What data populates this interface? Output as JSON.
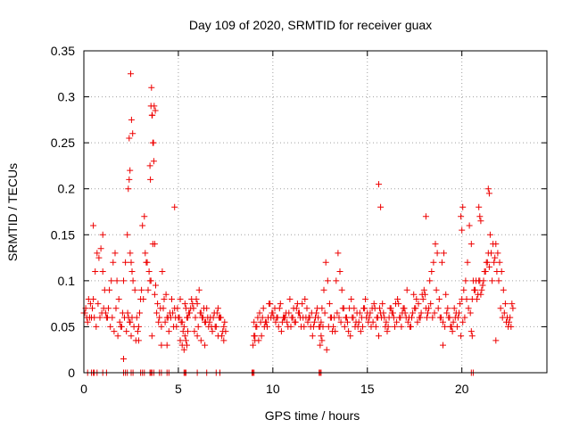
{
  "chart_data": {
    "type": "scatter",
    "title": "Day 109 of 2020, SRMTID for receiver guax",
    "xlabel": "GPS time / hours",
    "ylabel": "SRMTID / TECUs",
    "xlim": [
      0,
      24.5
    ],
    "ylim": [
      0,
      0.35
    ],
    "xticks": [
      0,
      5,
      10,
      15,
      20
    ],
    "yticks": [
      0,
      0.05,
      0.1,
      0.15,
      0.2,
      0.25,
      0.3,
      0.35
    ],
    "xtick_labels": [
      "0",
      "5",
      "10",
      "15",
      "20"
    ],
    "ytick_labels": [
      "0",
      "0.05",
      "0.1",
      "0.15",
      "0.2",
      "0.25",
      "0.3",
      "0.35"
    ],
    "grid": true,
    "marker": "plus",
    "series": [
      {
        "name": "SRMTID",
        "color": "#ee0000",
        "x": [
          0.0,
          0.1,
          0.2,
          0.3,
          0.4,
          0.5,
          0.6,
          0.7,
          0.8,
          0.9,
          1.0,
          1.1,
          1.2,
          1.3,
          1.4,
          1.5,
          1.6,
          1.7,
          1.8,
          1.9,
          2.0,
          2.1,
          2.2,
          2.3,
          2.35,
          2.4,
          2.45,
          2.5,
          2.55,
          2.6,
          2.7,
          2.8,
          2.9,
          3.0,
          3.1,
          3.2,
          3.3,
          3.4,
          3.5,
          3.55,
          3.6,
          3.65,
          3.7,
          3.75,
          3.8,
          3.9,
          4.0,
          4.1,
          4.2,
          4.3,
          4.4,
          4.5,
          4.6,
          4.7,
          4.8,
          4.9,
          5.0,
          5.1,
          5.2,
          5.3,
          5.4,
          5.5,
          5.6,
          5.7,
          5.8,
          5.9,
          6.0,
          6.1,
          6.2,
          6.3,
          6.4,
          6.5,
          6.6,
          6.7,
          6.8,
          6.9,
          7.0,
          7.1,
          7.2,
          7.3,
          7.4,
          7.5,
          9.0,
          9.1,
          9.2,
          9.3,
          9.4,
          9.5,
          9.6,
          9.7,
          9.8,
          9.9,
          10.0,
          10.1,
          10.2,
          10.3,
          10.4,
          10.5,
          10.6,
          10.7,
          10.8,
          10.9,
          11.0,
          11.1,
          11.2,
          11.3,
          11.4,
          11.5,
          11.6,
          11.7,
          11.8,
          11.9,
          12.0,
          12.1,
          12.2,
          12.3,
          12.4,
          12.5,
          12.6,
          12.7,
          12.8,
          12.9,
          13.0,
          13.1,
          13.2,
          13.3,
          13.4,
          13.5,
          13.6,
          13.7,
          13.8,
          13.9,
          14.0,
          14.1,
          14.2,
          14.3,
          14.4,
          14.5,
          14.6,
          14.7,
          14.8,
          14.9,
          15.0,
          15.1,
          15.2,
          15.3,
          15.4,
          15.5,
          15.6,
          15.7,
          15.8,
          15.9,
          16.0,
          16.1,
          16.2,
          16.3,
          16.4,
          16.5,
          16.6,
          16.7,
          16.8,
          16.9,
          17.0,
          17.1,
          17.2,
          17.3,
          17.4,
          17.5,
          17.6,
          17.7,
          17.8,
          17.9,
          18.0,
          18.1,
          18.2,
          18.3,
          18.4,
          18.5,
          18.6,
          18.7,
          18.8,
          18.9,
          19.0,
          19.1,
          19.2,
          19.3,
          19.4,
          19.5,
          19.6,
          19.7,
          19.8,
          19.9,
          20.0,
          20.1,
          20.2,
          20.3,
          20.4,
          20.5,
          20.6,
          20.7,
          20.8,
          20.9,
          21.0,
          21.1,
          21.2,
          21.3,
          21.4,
          21.5,
          21.6,
          21.7,
          21.8,
          21.9,
          22.0,
          22.1,
          22.2,
          22.3,
          22.4,
          22.5,
          22.6,
          22.7,
          0.05,
          0.15,
          0.25,
          0.35,
          0.45,
          0.55,
          0.65,
          0.75,
          0.85,
          0.95,
          1.05,
          1.15,
          1.25,
          1.35,
          1.45,
          1.55,
          1.65,
          1.75,
          1.85,
          1.95,
          2.05,
          2.15,
          2.25,
          2.45,
          2.5,
          2.55,
          2.65,
          2.75,
          2.85,
          2.95,
          3.05,
          3.15,
          3.25,
          3.35,
          3.45,
          3.55,
          3.65,
          3.75,
          3.85,
          3.95,
          4.05,
          4.15,
          4.25,
          4.35,
          4.45,
          4.55,
          4.65,
          4.75,
          4.85,
          4.95,
          5.05,
          5.15,
          5.25,
          5.35,
          5.45,
          5.55,
          5.65,
          5.75,
          5.85,
          5.95,
          6.05,
          6.15,
          6.25,
          6.35,
          6.45,
          6.55,
          6.65,
          6.75,
          6.85,
          6.95,
          7.05,
          7.15,
          7.25,
          7.35,
          7.45,
          9.05,
          9.15,
          9.25,
          9.35,
          9.45,
          9.55,
          9.65,
          9.75,
          9.85,
          9.95,
          10.05,
          10.15,
          10.25,
          10.35,
          10.45,
          10.55,
          10.65,
          10.75,
          10.85,
          10.95,
          11.05,
          11.15,
          11.25,
          11.35,
          11.45,
          11.55,
          11.65,
          11.75,
          11.85,
          11.95,
          12.05,
          12.15,
          12.25,
          12.35,
          12.45,
          12.55,
          12.65,
          12.75,
          12.85,
          12.95,
          13.05,
          13.15,
          13.25,
          13.35,
          13.45,
          13.55,
          13.65,
          13.75,
          13.85,
          13.95,
          14.05,
          14.15,
          14.25,
          14.35,
          14.45,
          14.55,
          14.65,
          14.75,
          14.85,
          14.95,
          15.05,
          15.15,
          15.25,
          15.35,
          15.45,
          15.55,
          15.65,
          15.75,
          15.85,
          15.95,
          16.05,
          16.15,
          16.25,
          16.35,
          16.45,
          16.55,
          16.65,
          16.75,
          16.85,
          16.95,
          17.05,
          17.15,
          17.25,
          17.35,
          17.45,
          17.55,
          17.65,
          17.75,
          17.85,
          17.95,
          18.05,
          18.15,
          18.25,
          18.35,
          18.45,
          18.55,
          18.65,
          18.75,
          18.85,
          18.95,
          19.05,
          19.15,
          19.25,
          19.35,
          19.45,
          19.55,
          19.65,
          19.75,
          19.85,
          19.95,
          20.05,
          20.15,
          20.25,
          20.35,
          20.45,
          20.55,
          20.65,
          20.75,
          20.85,
          20.95,
          21.05,
          21.15,
          21.25,
          21.35,
          21.45,
          21.55,
          21.65,
          21.75,
          21.85,
          21.95,
          22.05,
          22.15,
          22.25,
          22.35,
          22.45,
          22.55,
          22.65,
          2.32,
          2.36,
          2.42,
          2.48,
          3.58,
          3.62,
          3.68,
          3.72,
          3.78,
          2.52,
          2.58,
          2.4,
          2.44,
          3.52,
          3.5,
          15.6,
          15.7,
          18.1,
          19.95,
          20.0,
          20.05,
          20.9,
          20.95,
          21.0,
          21.4,
          21.45,
          4.8,
          0.5,
          1.0,
          2.1,
          2.9,
          3.6,
          4.1,
          4.4,
          5.1,
          5.2,
          5.3,
          5.35,
          5.4,
          5.45,
          5.5,
          6.0,
          6.2,
          6.4,
          7.1,
          7.4,
          8.95,
          9.0,
          9.05,
          12.5,
          12.55,
          12.6,
          19.0,
          20.5,
          20.55,
          21.8
        ],
        "y": [
          0.065,
          0.07,
          0.055,
          0.06,
          0.06,
          0.08,
          0.11,
          0.13,
          0.125,
          0.135,
          0.11,
          0.09,
          0.06,
          0.07,
          0.05,
          0.06,
          0.045,
          0.07,
          0.04,
          0.055,
          0.05,
          0.1,
          0.12,
          0.15,
          0.2,
          0.21,
          0.13,
          0.12,
          0.11,
          0.1,
          0.09,
          0.06,
          0.05,
          0.08,
          0.16,
          0.17,
          0.12,
          0.09,
          0.1,
          0.29,
          0.28,
          0.25,
          0.23,
          0.14,
          0.095,
          0.075,
          0.06,
          0.05,
          0.07,
          0.055,
          0.06,
          0.045,
          0.06,
          0.065,
          0.07,
          0.05,
          0.06,
          0.08,
          0.055,
          0.05,
          0.07,
          0.06,
          0.065,
          0.08,
          0.07,
          0.06,
          0.075,
          0.09,
          0.065,
          0.06,
          0.055,
          0.07,
          0.05,
          0.06,
          0.045,
          0.065,
          0.05,
          0.07,
          0.06,
          0.04,
          0.05,
          0.045,
          0.055,
          0.05,
          0.06,
          0.065,
          0.04,
          0.07,
          0.055,
          0.05,
          0.075,
          0.06,
          0.065,
          0.07,
          0.06,
          0.05,
          0.075,
          0.055,
          0.06,
          0.065,
          0.05,
          0.08,
          0.06,
          0.07,
          0.055,
          0.075,
          0.065,
          0.05,
          0.06,
          0.08,
          0.07,
          0.06,
          0.05,
          0.04,
          0.055,
          0.065,
          0.06,
          0.05,
          0.07,
          0.09,
          0.12,
          0.1,
          0.075,
          0.06,
          0.05,
          0.045,
          0.065,
          0.06,
          0.055,
          0.07,
          0.05,
          0.06,
          0.045,
          0.04,
          0.06,
          0.07,
          0.055,
          0.05,
          0.065,
          0.06,
          0.07,
          0.08,
          0.065,
          0.06,
          0.05,
          0.055,
          0.07,
          0.06,
          0.04,
          0.065,
          0.075,
          0.06,
          0.055,
          0.05,
          0.07,
          0.065,
          0.06,
          0.075,
          0.08,
          0.06,
          0.05,
          0.07,
          0.065,
          0.09,
          0.06,
          0.05,
          0.065,
          0.07,
          0.08,
          0.075,
          0.06,
          0.085,
          0.09,
          0.07,
          0.065,
          0.1,
          0.11,
          0.12,
          0.14,
          0.13,
          0.08,
          0.06,
          0.055,
          0.05,
          0.065,
          0.06,
          0.05,
          0.045,
          0.07,
          0.065,
          0.06,
          0.075,
          0.08,
          0.09,
          0.1,
          0.12,
          0.16,
          0.14,
          0.1,
          0.09,
          0.08,
          0.1,
          0.085,
          0.095,
          0.11,
          0.12,
          0.13,
          0.15,
          0.1,
          0.12,
          0.14,
          0.13,
          0.12,
          0.11,
          0.09,
          0.075,
          0.06,
          0.055,
          0.05,
          0.07,
          0.065,
          0.06,
          0.08,
          0.075,
          0.07,
          0.06,
          0.05,
          0.075,
          0.06,
          0.065,
          0.07,
          0.065,
          0.06,
          0.09,
          0.1,
          0.12,
          0.13,
          0.1,
          0.08,
          0.05,
          0.065,
          0.06,
          0.045,
          0.055,
          0.04,
          0.06,
          0.05,
          0.035,
          0.045,
          0.065,
          0.09,
          0.08,
          0.13,
          0.12,
          0.11,
          0.1,
          0.14,
          0.085,
          0.065,
          0.055,
          0.07,
          0.11,
          0.08,
          0.085,
          0.06,
          0.065,
          0.08,
          0.05,
          0.06,
          0.07,
          0.06,
          0.055,
          0.045,
          0.075,
          0.06,
          0.065,
          0.07,
          0.075,
          0.045,
          0.08,
          0.05,
          0.065,
          0.06,
          0.07,
          0.055,
          0.06,
          0.055,
          0.05,
          0.06,
          0.05,
          0.065,
          0.06,
          0.06,
          0.045,
          0.055,
          0.04,
          0.05,
          0.035,
          0.055,
          0.06,
          0.05,
          0.055,
          0.06,
          0.075,
          0.065,
          0.06,
          0.055,
          0.06,
          0.07,
          0.045,
          0.06,
          0.06,
          0.055,
          0.065,
          0.05,
          0.06,
          0.055,
          0.07,
          0.065,
          0.06,
          0.075,
          0.05,
          0.06,
          0.055,
          0.06,
          0.065,
          0.05,
          0.06,
          0.07,
          0.05,
          0.055,
          0.05,
          0.065,
          0.025,
          0.05,
          0.06,
          0.045,
          0.06,
          0.1,
          0.13,
          0.11,
          0.09,
          0.07,
          0.06,
          0.055,
          0.07,
          0.08,
          0.06,
          0.05,
          0.065,
          0.055,
          0.045,
          0.05,
          0.07,
          0.06,
          0.055,
          0.065,
          0.07,
          0.075,
          0.05,
          0.06,
          0.07,
          0.06,
          0.065,
          0.05,
          0.045,
          0.06,
          0.07,
          0.065,
          0.05,
          0.055,
          0.075,
          0.06,
          0.065,
          0.07,
          0.06,
          0.055,
          0.05,
          0.06,
          0.085,
          0.07,
          0.055,
          0.06,
          0.065,
          0.08,
          0.085,
          0.06,
          0.07,
          0.075,
          0.06,
          0.065,
          0.09,
          0.07,
          0.06,
          0.12,
          0.13,
          0.085,
          0.07,
          0.06,
          0.05,
          0.055,
          0.06,
          0.05,
          0.065,
          0.04,
          0.055,
          0.06,
          0.08,
          0.07,
          0.065,
          0.08,
          0.09,
          0.1,
          0.085,
          0.1,
          0.09,
          0.1,
          0.11,
          0.12,
          0.115,
          0.13,
          0.14,
          0.125,
          0.11,
          0.1,
          0.07,
          0.06,
          0.065,
          0.055,
          0.05,
          0.06,
          0.075,
          0.065,
          0.06,
          0.055,
          0.325,
          0.31,
          0.28,
          0.25,
          0.29,
          0.285,
          0.275,
          0.26,
          0.255,
          0.22,
          0.21,
          0.225,
          0.205,
          0.18,
          0.17,
          0.17,
          0.155,
          0.18,
          0.18,
          0.17,
          0.165,
          0.2,
          0.195,
          0.18,
          0.16,
          0.15,
          0.015,
          0.035,
          0.04,
          0.03,
          0.03,
          0.035,
          0.03,
          0.025,
          0.04,
          0.035,
          0.03,
          0.045,
          0.04,
          0.035,
          0.03,
          0.04,
          0.035,
          0.03,
          0.04,
          0.035,
          0.03,
          0.04,
          0.035,
          0.03,
          0.045,
          0.04,
          0.035
        ],
        "zero_x": [
          0.2,
          0.4,
          0.5,
          0.55,
          0.7,
          1.0,
          1.2,
          2.1,
          2.2,
          2.3,
          2.5,
          2.6,
          3.0,
          3.1,
          3.2,
          3.5,
          3.55,
          3.6,
          3.7,
          4.0,
          4.1,
          4.4,
          4.5,
          5.3,
          5.35,
          5.4,
          6.0,
          6.5,
          7.0,
          7.2,
          8.9,
          8.95,
          9.0,
          12.45,
          12.5,
          12.55,
          20.5,
          20.6
        ]
      }
    ]
  }
}
